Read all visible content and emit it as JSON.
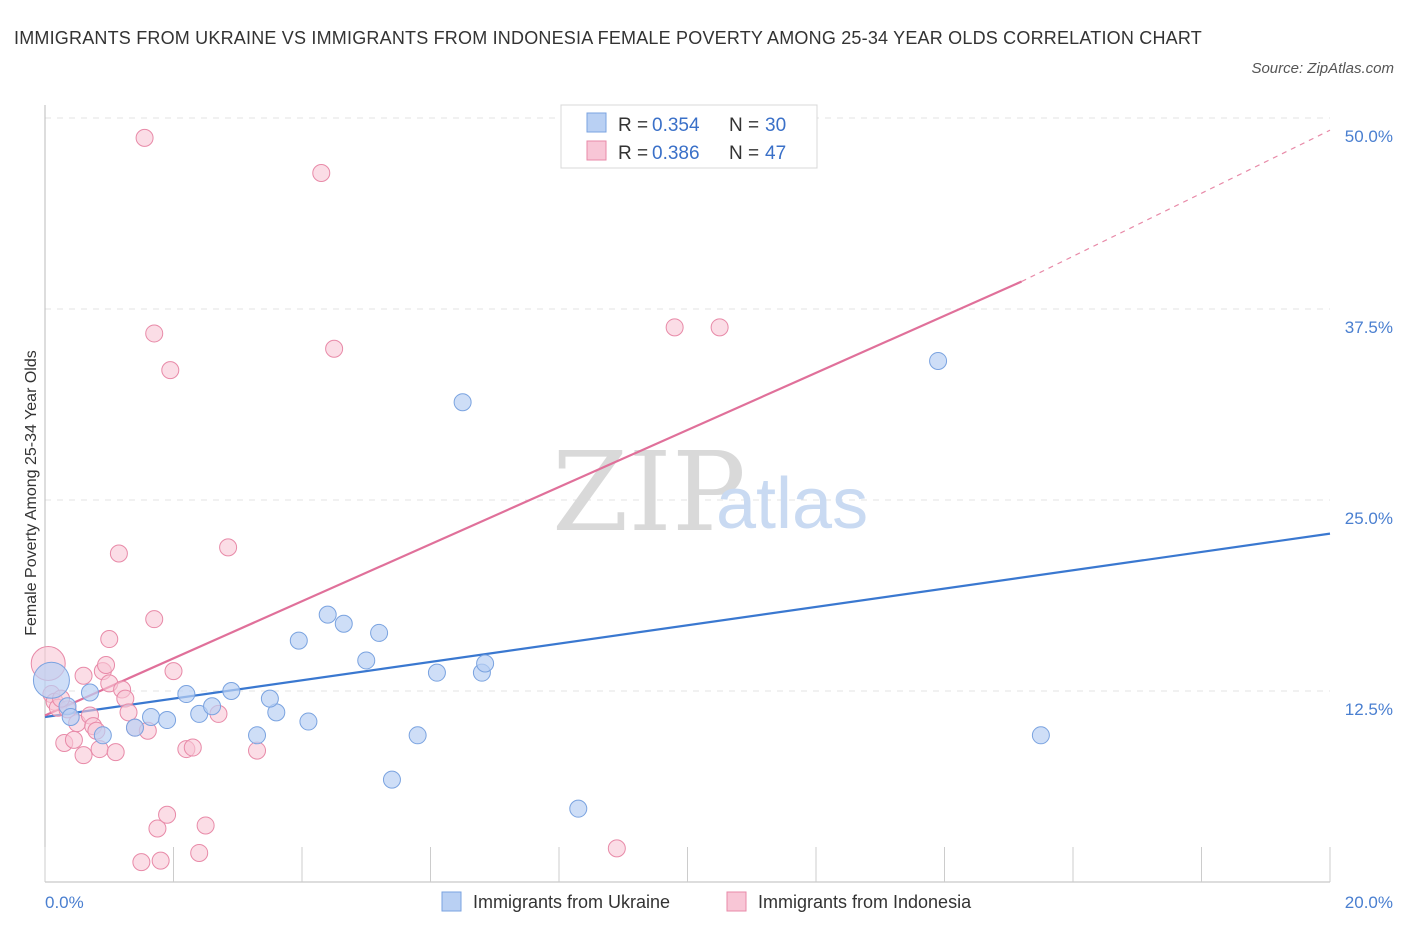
{
  "title": "IMMIGRANTS FROM UKRAINE VS IMMIGRANTS FROM INDONESIA FEMALE POVERTY AMONG 25-34 YEAR OLDS CORRELATION CHART",
  "source": "Source: ZipAtlas.com",
  "watermark": {
    "zip": "ZIP",
    "atlas": "atlas"
  },
  "legend": {
    "items": [
      {
        "r_label": "R = ",
        "r_value": "0.354",
        "n_label": "N = ",
        "n_value": "30"
      },
      {
        "r_label": "R = ",
        "r_value": "0.386",
        "n_label": "N = ",
        "n_value": "47"
      }
    ]
  },
  "colors": {
    "ukraine_fill": "#b9d0f3",
    "ukraine_stroke": "#7aa3e0",
    "ukraine_line": "#3a78d0",
    "indonesia_fill": "#f8c6d6",
    "indonesia_stroke": "#e88aa8",
    "indonesia_line": "#e0709a",
    "grid": "#e3e3e3",
    "axis_text": "#4a7fd0"
  },
  "chart_data": {
    "type": "scatter",
    "title": "IMMIGRANTS FROM UKRAINE VS IMMIGRANTS FROM INDONESIA FEMALE POVERTY AMONG 25-34 YEAR OLDS CORRELATION CHART",
    "xlabel": "",
    "ylabel": "Female Poverty Among 25-34 Year Olds",
    "xlim": [
      0,
      20
    ],
    "ylim": [
      0,
      50
    ],
    "x_tick_labels": [
      "0.0%",
      "20.0%"
    ],
    "y_ticks": [
      12.5,
      25,
      37.5,
      50
    ],
    "y_tick_labels": [
      "12.5%",
      "25.0%",
      "37.5%",
      "50.0%"
    ],
    "grid": true,
    "legend_position": "top-center",
    "series": [
      {
        "name": "Immigrants from Ukraine",
        "R": 0.354,
        "N": 30,
        "trend": {
          "x0": 0,
          "y0": 10.8,
          "x1": 20,
          "y1": 22.8
        },
        "points": [
          [
            0.1,
            13.2
          ],
          [
            0.35,
            11.5
          ],
          [
            0.7,
            12.4
          ],
          [
            0.9,
            9.6
          ],
          [
            1.4,
            10.1
          ],
          [
            1.65,
            10.8
          ],
          [
            1.9,
            10.6
          ],
          [
            2.2,
            12.3
          ],
          [
            2.4,
            11.0
          ],
          [
            2.6,
            11.5
          ],
          [
            2.9,
            12.5
          ],
          [
            3.3,
            9.6
          ],
          [
            3.6,
            11.1
          ],
          [
            3.5,
            12.0
          ],
          [
            4.1,
            10.5
          ],
          [
            3.95,
            15.8
          ],
          [
            4.4,
            17.5
          ],
          [
            4.65,
            16.9
          ],
          [
            5.0,
            14.5
          ],
          [
            5.2,
            16.3
          ],
          [
            5.4,
            6.7
          ],
          [
            5.8,
            9.6
          ],
          [
            6.1,
            13.7
          ],
          [
            6.5,
            31.4
          ],
          [
            6.8,
            13.7
          ],
          [
            6.85,
            14.3
          ],
          [
            8.3,
            4.8
          ],
          [
            13.9,
            34.1
          ],
          [
            15.5,
            9.6
          ],
          [
            0.4,
            10.8
          ]
        ]
      },
      {
        "name": "Immigrants from Indonesia",
        "R": 0.386,
        "N": 47,
        "trend": {
          "x0": 0,
          "y0": 10.9,
          "x1": 15.2,
          "y1": 39.3
        },
        "trend_dashed": {
          "x0": 15.2,
          "y0": 39.3,
          "x1": 20,
          "y1": 49.2
        },
        "points": [
          [
            0.05,
            14.3
          ],
          [
            0.1,
            12.3
          ],
          [
            0.15,
            11.8
          ],
          [
            0.2,
            11.4
          ],
          [
            0.3,
            9.1
          ],
          [
            0.35,
            11.3
          ],
          [
            0.45,
            9.3
          ],
          [
            0.5,
            10.4
          ],
          [
            0.6,
            8.3
          ],
          [
            0.6,
            13.5
          ],
          [
            0.7,
            10.9
          ],
          [
            0.75,
            10.2
          ],
          [
            0.8,
            9.9
          ],
          [
            0.85,
            8.7
          ],
          [
            0.9,
            13.8
          ],
          [
            0.95,
            14.2
          ],
          [
            1.0,
            13.0
          ],
          [
            1.0,
            15.9
          ],
          [
            1.1,
            8.5
          ],
          [
            1.15,
            21.5
          ],
          [
            1.2,
            12.6
          ],
          [
            1.25,
            12.0
          ],
          [
            1.3,
            11.1
          ],
          [
            1.4,
            10.1
          ],
          [
            1.5,
            1.3
          ],
          [
            1.55,
            48.7
          ],
          [
            1.6,
            9.9
          ],
          [
            1.7,
            17.2
          ],
          [
            1.7,
            35.9
          ],
          [
            1.75,
            3.5
          ],
          [
            1.8,
            1.4
          ],
          [
            1.9,
            4.4
          ],
          [
            1.95,
            33.5
          ],
          [
            2.0,
            13.8
          ],
          [
            2.2,
            8.7
          ],
          [
            2.3,
            8.8
          ],
          [
            2.4,
            1.9
          ],
          [
            2.5,
            3.7
          ],
          [
            2.7,
            11.0
          ],
          [
            2.85,
            21.9
          ],
          [
            3.3,
            8.6
          ],
          [
            4.3,
            46.4
          ],
          [
            4.5,
            34.9
          ],
          [
            8.9,
            2.2
          ],
          [
            9.8,
            36.3
          ],
          [
            10.5,
            36.3
          ],
          [
            0.25,
            12.0
          ]
        ]
      }
    ]
  }
}
